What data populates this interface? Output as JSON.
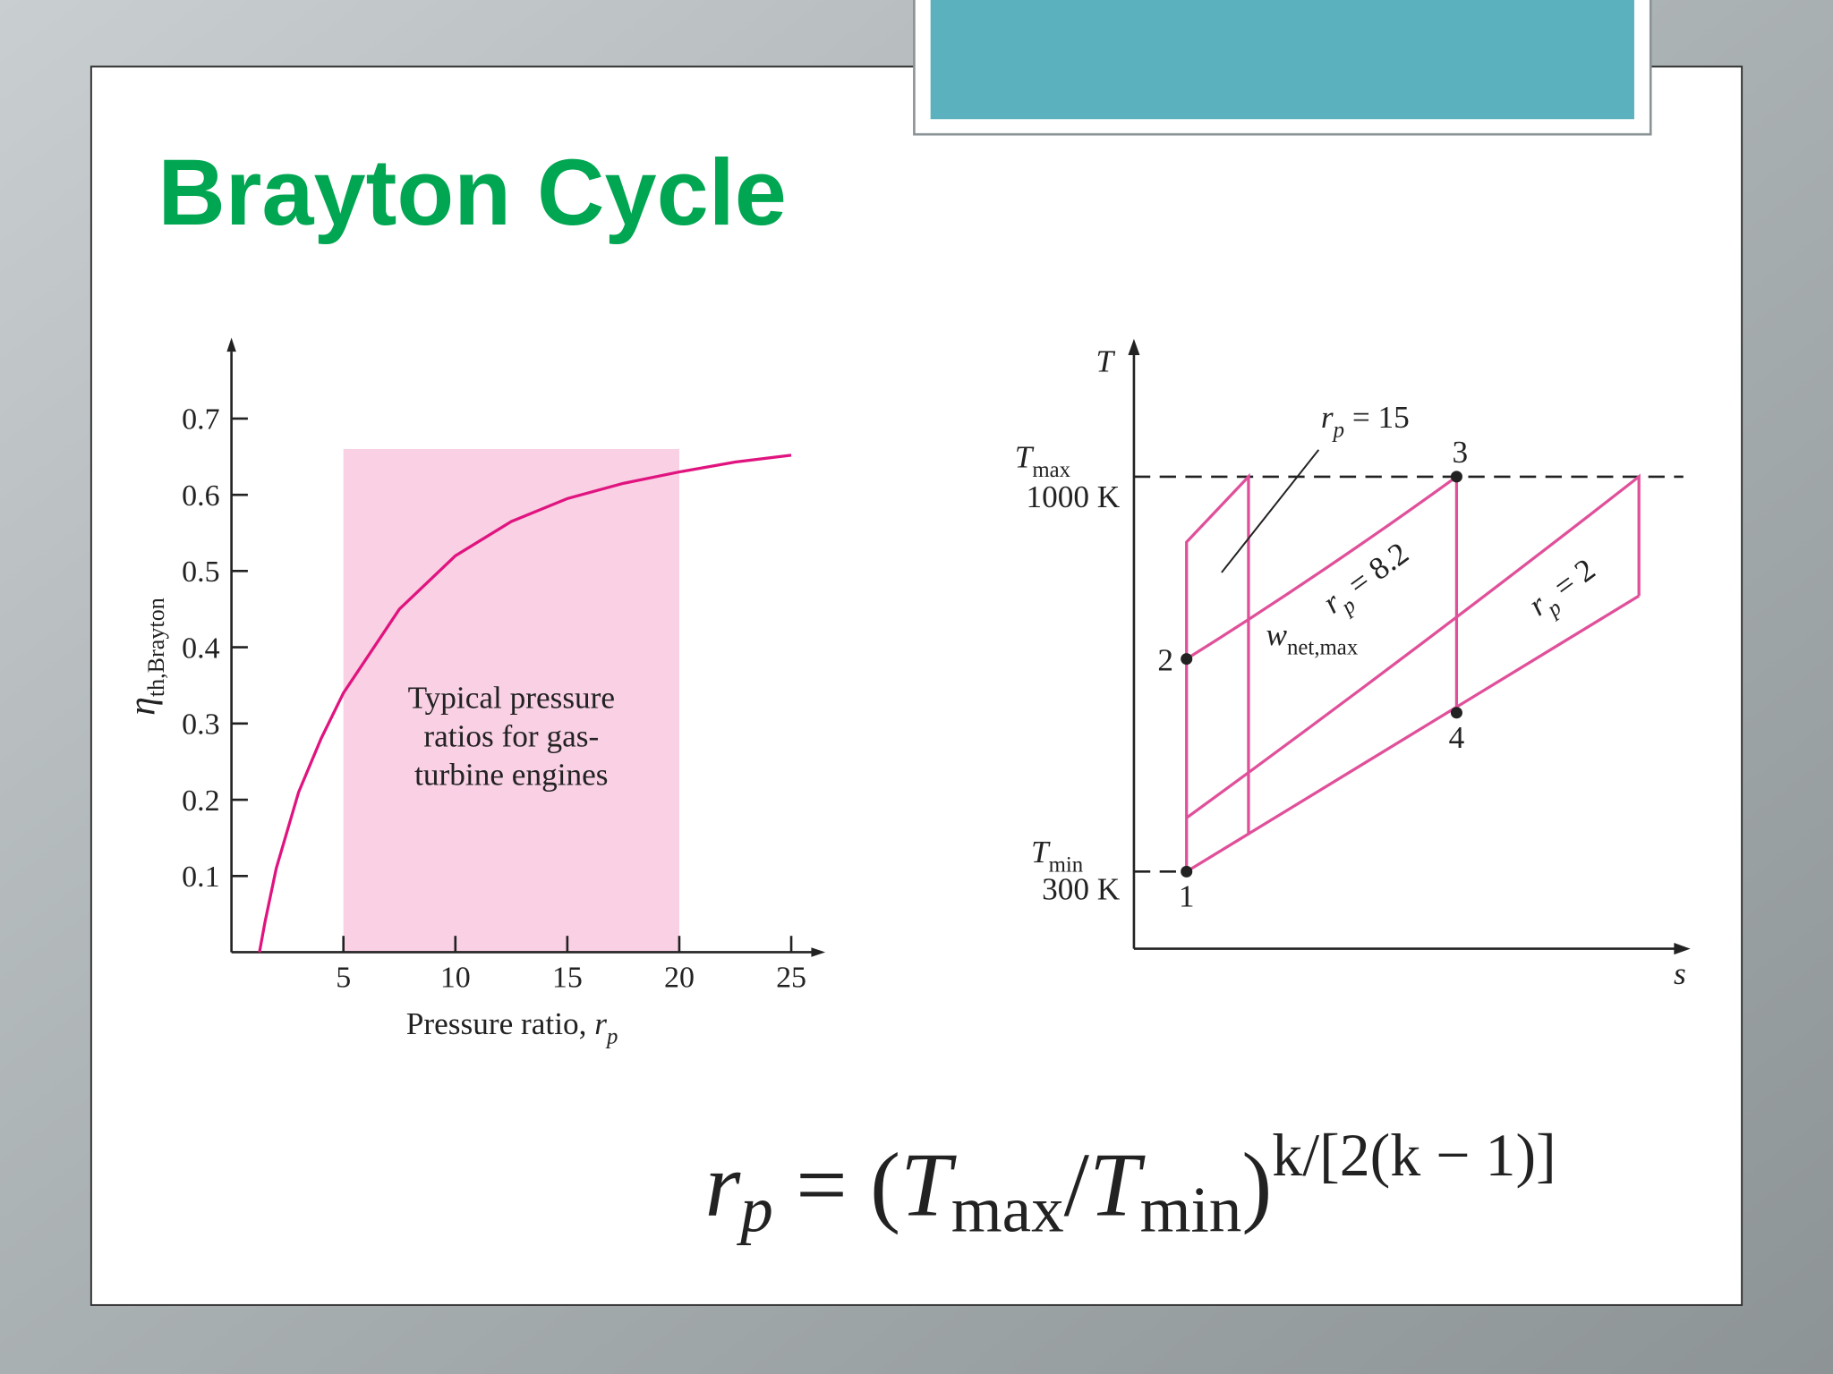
{
  "slide": {
    "title": "Brayton Cycle"
  },
  "chart_data": {
    "type": "line",
    "x_label": {
      "text": "Pressure ratio, ",
      "symbol": "r",
      "subscript": "p"
    },
    "y_label": {
      "symbol": "η",
      "subscript": "th,Brayton"
    },
    "x": [
      1.25,
      1.5,
      2,
      3,
      4,
      5,
      7.5,
      10,
      12.5,
      15,
      17.5,
      20,
      22.5,
      25
    ],
    "series": [
      {
        "color": "#e0137f",
        "values": [
          0,
          0.04,
          0.11,
          0.21,
          0.28,
          0.34,
          0.45,
          0.52,
          0.565,
          0.595,
          0.615,
          0.63,
          0.643,
          0.652
        ]
      }
    ],
    "xlim": [
      0,
      26
    ],
    "ylim": [
      0,
      0.8
    ],
    "xticks": [
      5,
      10,
      15,
      20,
      25
    ],
    "yticks": [
      0.1,
      0.2,
      0.3,
      0.4,
      0.5,
      0.6,
      0.7
    ],
    "shaded_range": {
      "x": [
        5,
        20
      ],
      "top": 0.66,
      "color": "#f9d0e4",
      "label": [
        "Typical pressure",
        "ratios for gas-",
        "turbine engines"
      ]
    }
  },
  "diagram": {
    "y_axis": "T",
    "x_axis": "s",
    "t_max": {
      "symbol": "T",
      "subscript": "max",
      "value": "1000 K"
    },
    "t_min": {
      "symbol": "T",
      "subscript": "min",
      "value": "300 K"
    },
    "states": [
      "1",
      "2",
      "3",
      "4"
    ],
    "rp_15": {
      "symbol": "r",
      "subscript": "p",
      "text": " = 15"
    },
    "rp_82": {
      "symbol": "r",
      "subscript": "p",
      "text": " = 8.2"
    },
    "rp_2": {
      "symbol": "r",
      "subscript": "p",
      "text": " = 2"
    },
    "work": {
      "symbol": "w",
      "subscript": "net,max"
    }
  },
  "formula": {
    "lhs": "r",
    "lhs_sub": "p",
    "eq": " = (",
    "t1": "T",
    "t1_sub": "max",
    "slash": "/",
    "t2": "T",
    "t2_sub": "min",
    "close": ")",
    "exponent": "k/[2(k − 1)]"
  }
}
